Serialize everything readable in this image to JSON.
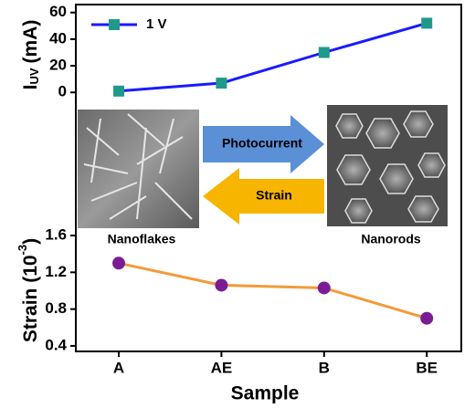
{
  "chart_data": [
    {
      "type": "line",
      "y_label": {
        "main": "I",
        "sub": "UV",
        "unit": "(mA)"
      },
      "series": [
        {
          "name": "1 V",
          "color": "#1a1aff",
          "marker_color": "#1f9a8a",
          "values": [
            1,
            7,
            30,
            52
          ]
        }
      ],
      "ylim": [
        -6,
        66
      ],
      "yticks": [
        0,
        20,
        40,
        60
      ],
      "annotations": [
        "Photocurrent",
        "Strain",
        "Nanoflakes",
        "Nanorods"
      ]
    },
    {
      "type": "line",
      "y_label": {
        "main": "Strain (10",
        "sup": "-3",
        "unit": ")"
      },
      "x_label": "Sample",
      "categories": [
        "A",
        "AE",
        "B",
        "BE"
      ],
      "series": [
        {
          "color": "#f39a3a",
          "marker_color": "#7a1d94",
          "values": [
            1.3,
            1.06,
            1.03,
            0.7
          ]
        }
      ],
      "ylim": [
        0.34,
        1.68
      ],
      "yticks": [
        0.4,
        0.8,
        1.2,
        1.6
      ]
    }
  ]
}
